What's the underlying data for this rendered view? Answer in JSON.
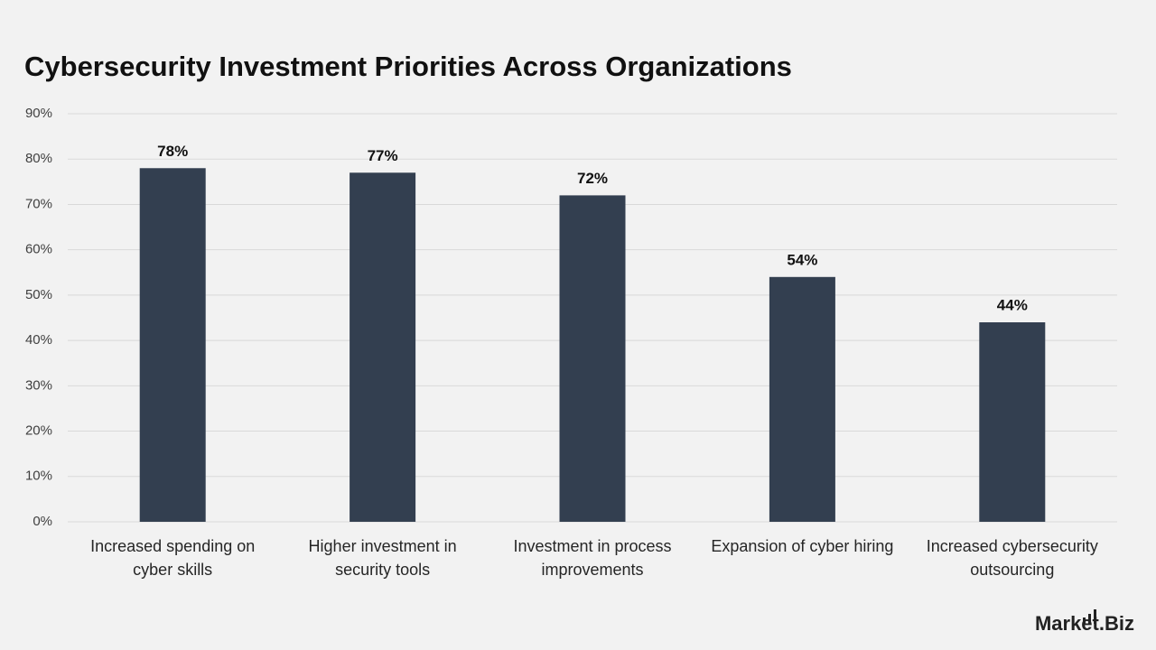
{
  "chart_data": {
    "type": "bar",
    "title": "Cybersecurity Investment Priorities Across Organizations",
    "categories": [
      "Increased spending on cyber skills",
      "Higher investment in security tools",
      "Investment in process improvements",
      "Expansion of cyber hiring",
      "Increased cybersecurity outsourcing"
    ],
    "values": [
      78,
      77,
      72,
      54,
      44
    ],
    "value_labels": [
      "78%",
      "77%",
      "72%",
      "54%",
      "44%"
    ],
    "color": "#333f50",
    "ylim": [
      0,
      90
    ],
    "yticks": [
      {
        "value": 0,
        "label": "0%"
      },
      {
        "value": 10,
        "label": "10%"
      },
      {
        "value": 20,
        "label": "20%"
      },
      {
        "value": 30,
        "label": "30%"
      },
      {
        "value": 40,
        "label": "40%"
      },
      {
        "value": 50,
        "label": "50%"
      },
      {
        "value": 60,
        "label": "60%"
      },
      {
        "value": 70,
        "label": "70%"
      },
      {
        "value": 80,
        "label": "80%"
      },
      {
        "value": 90,
        "label": "90%"
      }
    ],
    "grid": true,
    "watermark": "Market.Biz"
  }
}
